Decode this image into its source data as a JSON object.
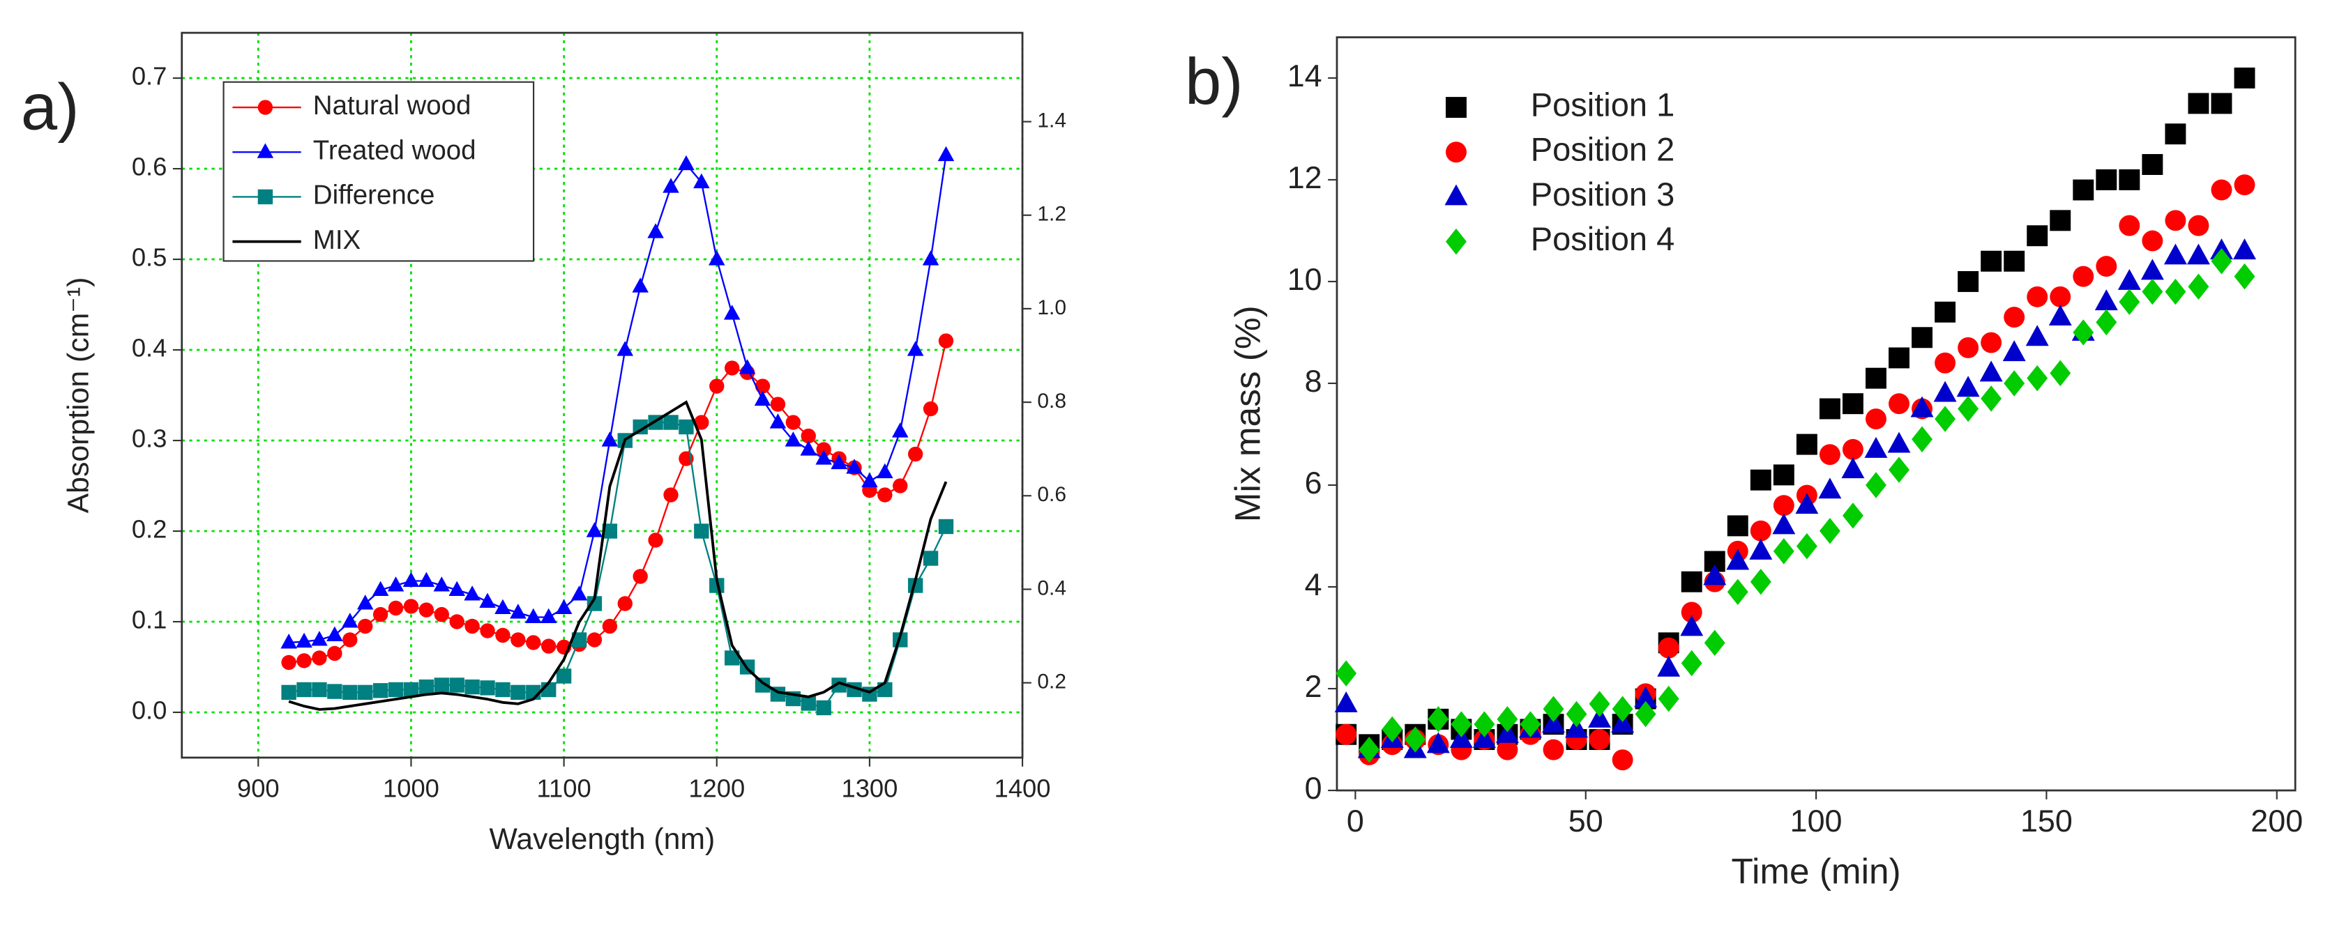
{
  "chart_data": [
    {
      "type": "line",
      "panel_label": "a)",
      "xlabel": "Wavelength (nm)",
      "ylabel": "Absorption (cm⁻¹)",
      "xlim": [
        850,
        1400
      ],
      "xticks": [
        900,
        1000,
        1100,
        1200,
        1300,
        1400
      ],
      "ylim": [
        -0.05,
        0.75
      ],
      "yticks": [
        {
          "value": 0,
          "label": "0.0"
        },
        0.1,
        0.2,
        0.3,
        0.4,
        0.5,
        0.6,
        0.7
      ],
      "y2lim": [
        0.04,
        1.59
      ],
      "y2ticks": [
        0.2,
        0.4,
        0.6,
        0.8,
        {
          "value": 1,
          "label": "1.0"
        },
        1.2,
        1.4
      ],
      "grid": true,
      "grid_color": "#00e000",
      "legend": "upper left",
      "x": [
        920,
        930,
        940,
        950,
        960,
        970,
        980,
        990,
        1000,
        1010,
        1020,
        1030,
        1040,
        1050,
        1060,
        1070,
        1080,
        1090,
        1100,
        1110,
        1120,
        1130,
        1140,
        1150,
        1160,
        1170,
        1180,
        1190,
        1200,
        1210,
        1220,
        1230,
        1240,
        1250,
        1260,
        1270,
        1280,
        1290,
        1300,
        1310,
        1320,
        1330,
        1340,
        1350
      ],
      "series": [
        {
          "name": "Natural wood",
          "color": "#ff0000",
          "marker": "circle",
          "values": [
            0.055,
            0.057,
            0.06,
            0.065,
            0.08,
            0.095,
            0.108,
            0.115,
            0.117,
            0.113,
            0.108,
            0.1,
            0.095,
            0.09,
            0.085,
            0.08,
            0.077,
            0.073,
            0.072,
            0.075,
            0.08,
            0.095,
            0.12,
            0.15,
            0.19,
            0.24,
            0.28,
            0.32,
            0.36,
            0.38,
            0.375,
            0.36,
            0.34,
            0.32,
            0.305,
            0.29,
            0.28,
            0.27,
            0.245,
            0.24,
            0.25,
            0.285,
            0.335,
            0.41
          ]
        },
        {
          "name": "Treated wood",
          "color": "#0000ff",
          "marker": "triangle",
          "values": [
            0.077,
            0.078,
            0.08,
            0.085,
            0.1,
            0.12,
            0.135,
            0.14,
            0.145,
            0.145,
            0.14,
            0.135,
            0.13,
            0.122,
            0.115,
            0.11,
            0.105,
            0.105,
            0.115,
            0.13,
            0.2,
            0.3,
            0.4,
            0.47,
            0.53,
            0.58,
            0.605,
            0.585,
            0.5,
            0.44,
            0.38,
            0.345,
            0.32,
            0.3,
            0.29,
            0.28,
            0.275,
            0.27,
            0.255,
            0.265,
            0.31,
            0.4,
            0.5,
            0.615
          ]
        },
        {
          "name": "Difference",
          "color": "#008080",
          "marker": "square",
          "values": [
            0.022,
            0.025,
            0.025,
            0.023,
            0.022,
            0.022,
            0.024,
            0.025,
            0.025,
            0.028,
            0.03,
            0.03,
            0.028,
            0.027,
            0.025,
            0.022,
            0.022,
            0.025,
            0.04,
            0.08,
            0.12,
            0.2,
            0.3,
            0.315,
            0.32,
            0.32,
            0.315,
            0.2,
            0.14,
            0.06,
            0.05,
            0.03,
            0.02,
            0.015,
            0.01,
            0.005,
            0.03,
            0.025,
            0.02,
            0.025,
            0.08,
            0.14,
            0.17,
            0.205
          ]
        },
        {
          "name": "MIX",
          "color": "#000000",
          "marker": "none",
          "axis": "y2",
          "values": [
            0.16,
            0.15,
            0.143,
            0.145,
            0.15,
            0.155,
            0.16,
            0.165,
            0.17,
            0.175,
            0.178,
            0.175,
            0.17,
            0.165,
            0.158,
            0.155,
            0.165,
            0.2,
            0.25,
            0.33,
            0.38,
            0.62,
            0.72,
            0.74,
            0.76,
            0.78,
            0.8,
            0.72,
            0.42,
            0.28,
            0.23,
            0.2,
            0.18,
            0.175,
            0.17,
            0.18,
            0.2,
            0.19,
            0.18,
            0.2,
            0.3,
            0.42,
            0.55,
            0.63
          ]
        }
      ]
    },
    {
      "type": "scatter",
      "panel_label": "b)",
      "xlabel": "Time (min)",
      "ylabel": "Mix mass (%)",
      "xlim": [
        -4,
        204
      ],
      "xticks": [
        0,
        50,
        100,
        150,
        200
      ],
      "ylim": [
        0,
        14.8
      ],
      "yticks": [
        0,
        2,
        4,
        6,
        8,
        10,
        12,
        14
      ],
      "grid": false,
      "legend": "upper left",
      "x": [
        -2,
        3,
        8,
        13,
        18,
        23,
        28,
        33,
        38,
        43,
        48,
        53,
        58,
        63,
        68,
        73,
        78,
        83,
        88,
        93,
        98,
        103,
        108,
        113,
        118,
        123,
        128,
        133,
        138,
        143,
        148,
        153,
        158,
        163,
        168,
        173,
        178,
        183,
        188,
        193
      ],
      "series": [
        {
          "name": "Position 1",
          "color": "#000000",
          "marker": "square",
          "values": [
            1.1,
            0.9,
            1.0,
            1.1,
            1.4,
            1.2,
            1.0,
            1.1,
            1.2,
            1.3,
            1.0,
            1.0,
            1.3,
            1.8,
            2.9,
            4.1,
            4.5,
            5.2,
            6.1,
            6.2,
            6.8,
            7.5,
            7.6,
            8.1,
            8.5,
            8.9,
            9.4,
            10.0,
            10.4,
            10.4,
            10.9,
            11.2,
            11.8,
            12.0,
            12.0,
            12.3,
            12.9,
            13.5,
            13.5,
            14.0
          ]
        },
        {
          "name": "Position 2",
          "color": "#ff0000",
          "marker": "circle",
          "values": [
            1.1,
            0.7,
            0.9,
            1.0,
            0.9,
            0.8,
            1.0,
            0.8,
            1.1,
            0.8,
            1.0,
            1.0,
            0.6,
            1.9,
            2.8,
            3.5,
            4.1,
            4.7,
            5.1,
            5.6,
            5.8,
            6.6,
            6.7,
            7.3,
            7.6,
            7.5,
            8.4,
            8.7,
            8.8,
            9.3,
            9.7,
            9.7,
            10.1,
            10.3,
            11.1,
            10.8,
            11.2,
            11.1,
            11.8,
            11.9
          ]
        },
        {
          "name": "Position 3",
          "color": "#0000cc",
          "marker": "triangle",
          "values": [
            1.7,
            0.8,
            1.0,
            0.8,
            0.9,
            1.0,
            1.0,
            1.1,
            1.2,
            1.3,
            1.2,
            1.4,
            1.3,
            1.8,
            2.4,
            3.2,
            4.2,
            4.5,
            4.7,
            5.2,
            5.6,
            5.9,
            6.3,
            6.7,
            6.8,
            7.5,
            7.8,
            7.9,
            8.2,
            8.6,
            8.9,
            9.3,
            9.0,
            9.6,
            10.0,
            10.2,
            10.5,
            10.5,
            10.6,
            10.6
          ]
        },
        {
          "name": "Position 4",
          "color": "#00cc00",
          "marker": "diamond",
          "values": [
            2.3,
            0.8,
            1.2,
            1.0,
            1.4,
            1.3,
            1.3,
            1.4,
            1.3,
            1.6,
            1.5,
            1.7,
            1.6,
            1.5,
            1.8,
            2.5,
            2.9,
            3.9,
            4.1,
            4.7,
            4.8,
            5.1,
            5.4,
            6.0,
            6.3,
            6.9,
            7.3,
            7.5,
            7.7,
            8.0,
            8.1,
            8.2,
            9.0,
            9.2,
            9.6,
            9.8,
            9.8,
            9.9,
            10.4,
            10.1
          ]
        }
      ]
    }
  ]
}
